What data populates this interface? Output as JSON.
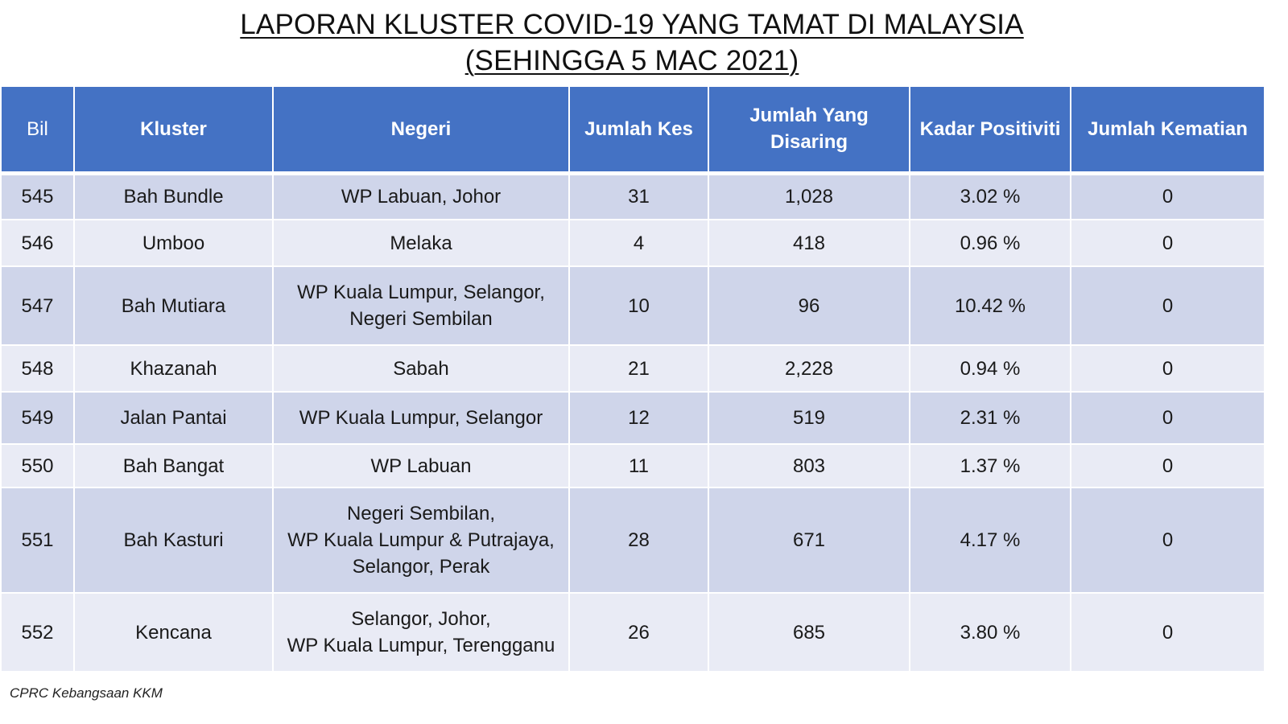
{
  "title": {
    "line1": "LAPORAN KLUSTER COVID-19 YANG TAMAT DI MALAYSIA",
    "line2": "(SEHINGGA 5 MAC 2021)"
  },
  "table": {
    "headers": {
      "bil": "Bil",
      "kluster": "Kluster",
      "negeri": "Negeri",
      "jumlah_kes": "Jumlah Kes",
      "jumlah_disaring": "Jumlah Yang Disaring",
      "kadar_positiviti": "Kadar Positiviti",
      "jumlah_kematian": "Jumlah Kematian"
    },
    "rows": [
      {
        "bil": "545",
        "kluster": "Bah Bundle",
        "negeri": [
          "WP Labuan, Johor"
        ],
        "kes": "31",
        "disaring": "1,028",
        "positiviti": "3.02 %",
        "kematian": "0"
      },
      {
        "bil": "546",
        "kluster": "Umboo",
        "negeri": [
          "Melaka"
        ],
        "kes": "4",
        "disaring": "418",
        "positiviti": "0.96 %",
        "kematian": "0"
      },
      {
        "bil": "547",
        "kluster": "Bah Mutiara",
        "negeri": [
          "WP Kuala Lumpur, Selangor,",
          "Negeri Sembilan"
        ],
        "kes": "10",
        "disaring": "96",
        "positiviti": "10.42 %",
        "kematian": "0"
      },
      {
        "bil": "548",
        "kluster": "Khazanah",
        "negeri": [
          "Sabah"
        ],
        "kes": "21",
        "disaring": "2,228",
        "positiviti": "0.94 %",
        "kematian": "0"
      },
      {
        "bil": "549",
        "kluster": "Jalan Pantai",
        "negeri": [
          "WP Kuala Lumpur, Selangor"
        ],
        "kes": "12",
        "disaring": "519",
        "positiviti": "2.31 %",
        "kematian": "0"
      },
      {
        "bil": "550",
        "kluster": "Bah Bangat",
        "negeri": [
          "WP Labuan"
        ],
        "kes": "11",
        "disaring": "803",
        "positiviti": "1.37 %",
        "kematian": "0"
      },
      {
        "bil": "551",
        "kluster": "Bah Kasturi",
        "negeri": [
          "Negeri Sembilan,",
          "WP Kuala Lumpur & Putrajaya,",
          "Selangor, Perak"
        ],
        "kes": "28",
        "disaring": "671",
        "positiviti": "4.17 %",
        "kematian": "0"
      },
      {
        "bil": "552",
        "kluster": "Kencana",
        "negeri": [
          "Selangor,  Johor,",
          "WP Kuala Lumpur, Terengganu"
        ],
        "kes": "26",
        "disaring": "685",
        "positiviti": "3.80 %",
        "kematian": "0"
      }
    ]
  },
  "footer": {
    "source": "CPRC Kebangsaan KKM"
  }
}
